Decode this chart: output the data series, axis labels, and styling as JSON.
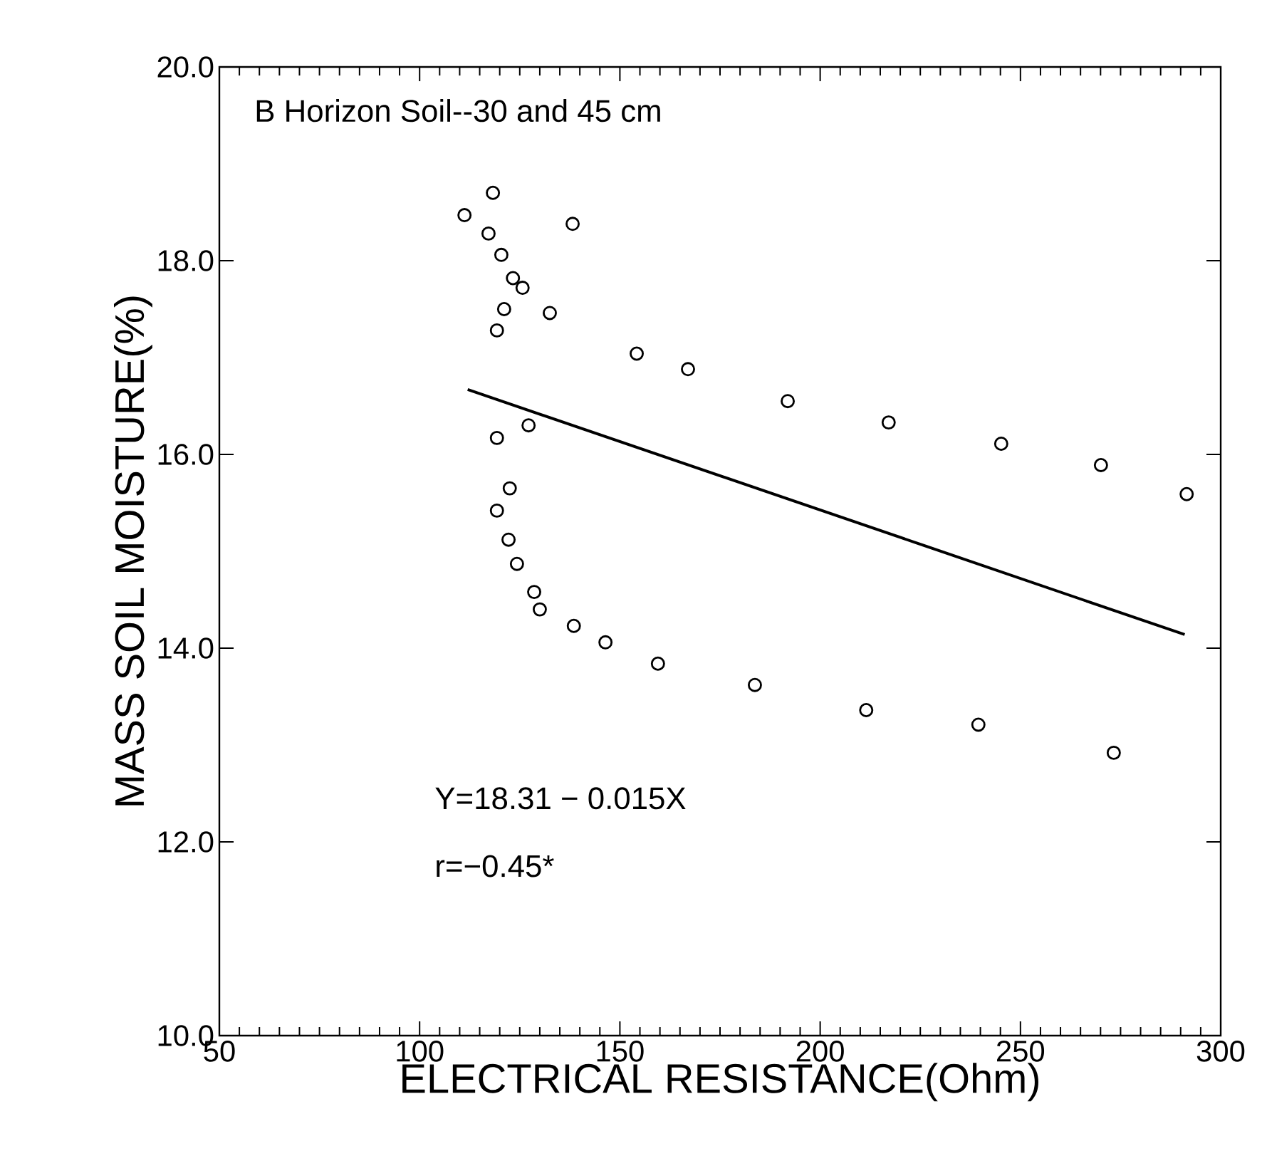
{
  "chart_data": {
    "type": "scatter",
    "title": "B Horizon Soil--30 and 45 cm",
    "xlabel": "ELECTRICAL RESISTANCE(Ohm)",
    "ylabel": "MASS SOIL MOISTURE(%)",
    "xlim": [
      50,
      300
    ],
    "xticks": [
      50,
      100,
      150,
      200,
      250,
      300
    ],
    "ylim": [
      10,
      20
    ],
    "yticks": [
      {
        "value": 10,
        "label": "10.0"
      },
      {
        "value": 12,
        "label": "12.0"
      },
      {
        "value": 14,
        "label": "14.0"
      },
      {
        "value": 16,
        "label": "16.0"
      },
      {
        "value": 18,
        "label": "18.0"
      },
      {
        "value": 20,
        "label": "20.0"
      }
    ],
    "annotations": [
      "Y=18.31 − 0.015X",
      "r=−0.45*"
    ],
    "marker": "circle",
    "series": [
      {
        "color": "#000000",
        "x": [
          118.3,
          111.2,
          138.2,
          117.2,
          120.4,
          123.3,
          125.7,
          121.1,
          132.5,
          119.3,
          127.2,
          119.3,
          122.5,
          119.3,
          122.2,
          124.3,
          128.6,
          130.0,
          138.5,
          146.4,
          154.2,
          167.0,
          191.9,
          217.1,
          245.2,
          270.1,
          291.5,
          159.5,
          183.7,
          211.5,
          239.5,
          273.3
        ],
        "values": [
          18.7,
          18.47,
          18.38,
          18.28,
          18.06,
          17.82,
          17.72,
          17.5,
          17.46,
          17.28,
          16.3,
          16.17,
          15.65,
          15.42,
          15.12,
          14.87,
          14.58,
          14.4,
          14.23,
          14.06,
          17.04,
          16.88,
          16.55,
          16.33,
          16.11,
          15.89,
          15.59,
          13.84,
          13.62,
          13.36,
          13.21,
          12.92
        ]
      },
      {
        "type": "line",
        "marker": "none",
        "color": "#000000",
        "x": [
          112,
          291
        ],
        "values": [
          16.67,
          14.14
        ]
      }
    ]
  }
}
